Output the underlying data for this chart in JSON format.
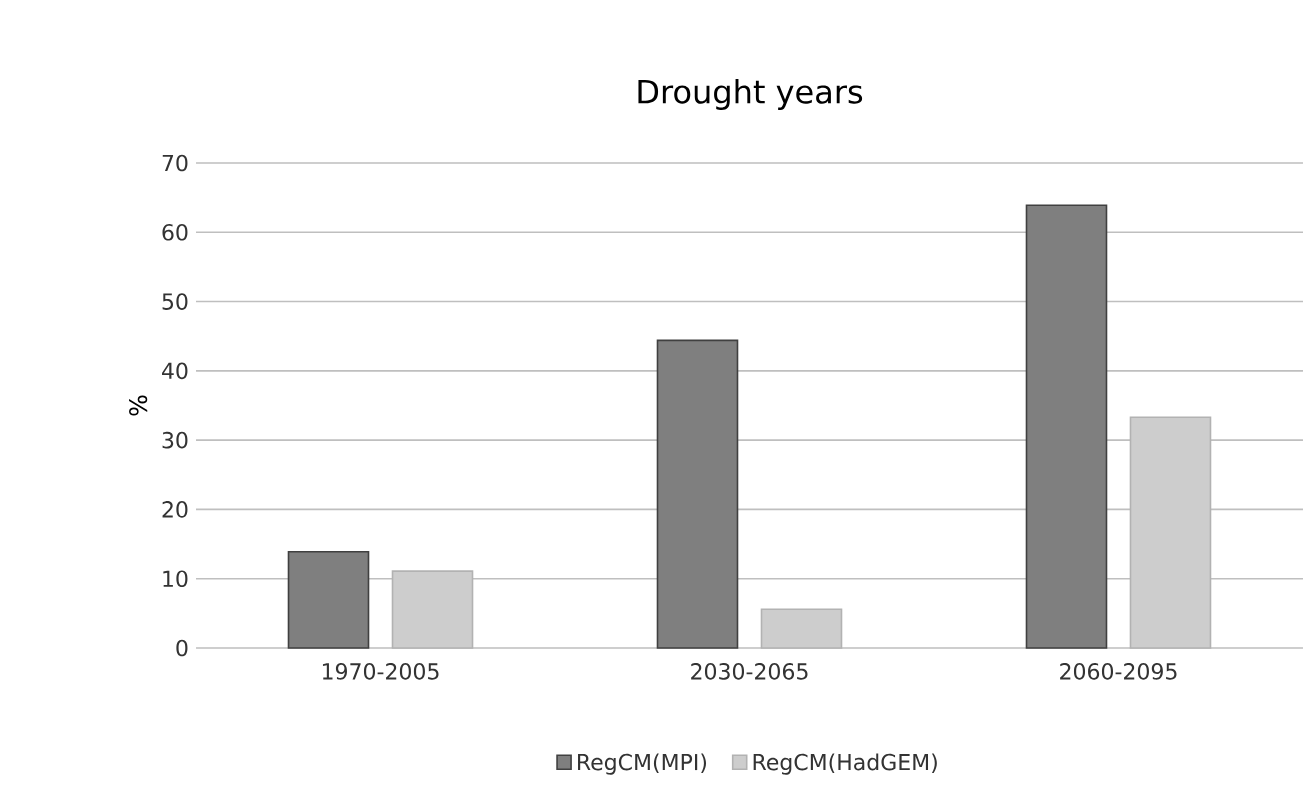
{
  "chart_data": {
    "type": "bar",
    "title": "Drought years",
    "ylabel": "%",
    "categories": [
      "1970-2005",
      "2030-2065",
      "2060-2095"
    ],
    "series": [
      {
        "name": "RegCM(MPI)",
        "color": "#7f7f7f",
        "values": [
          13.9,
          44.4,
          63.9
        ]
      },
      {
        "name": "RegCM(HadGEM)",
        "color": "#cdcdcd",
        "values": [
          11.1,
          5.6,
          33.3
        ]
      }
    ],
    "ylim": [
      0,
      70
    ],
    "yticks": [
      0,
      10,
      20,
      30,
      40,
      50,
      60,
      70
    ],
    "grid": "y",
    "legend": "bottom"
  }
}
